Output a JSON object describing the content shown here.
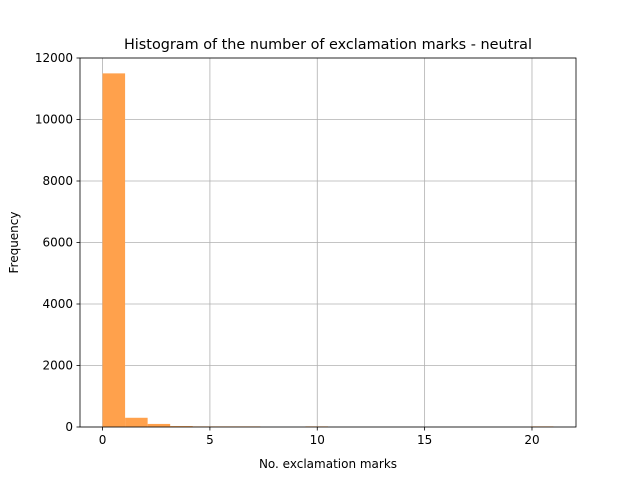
{
  "chart_data": {
    "type": "bar",
    "title": "Histogram of the number of exclamation marks - neutral",
    "xlabel": "No. exclamation marks",
    "ylabel": "Frequency",
    "xlim": [
      -1.05,
      22.05
    ],
    "ylim": [
      0,
      12000
    ],
    "xticks": [
      0,
      5,
      10,
      15,
      20
    ],
    "yticks": [
      0,
      2000,
      4000,
      6000,
      8000,
      10000,
      12000
    ],
    "grid": true,
    "bar_color": "#ffa14c",
    "bins": [
      {
        "x0": 0.0,
        "x1": 1.05,
        "value": 11500
      },
      {
        "x0": 1.05,
        "x1": 2.1,
        "value": 300
      },
      {
        "x0": 2.1,
        "x1": 3.15,
        "value": 100
      },
      {
        "x0": 3.15,
        "x1": 4.2,
        "value": 30
      },
      {
        "x0": 4.2,
        "x1": 5.25,
        "value": 5
      },
      {
        "x0": 5.25,
        "x1": 6.3,
        "value": 2
      },
      {
        "x0": 6.3,
        "x1": 7.35,
        "value": 1
      },
      {
        "x0": 7.35,
        "x1": 8.4,
        "value": 0
      },
      {
        "x0": 8.4,
        "x1": 9.45,
        "value": 0
      },
      {
        "x0": 9.45,
        "x1": 10.5,
        "value": 1
      },
      {
        "x0": 10.5,
        "x1": 11.55,
        "value": 0
      },
      {
        "x0": 11.55,
        "x1": 12.6,
        "value": 0
      },
      {
        "x0": 12.6,
        "x1": 13.65,
        "value": 0
      },
      {
        "x0": 13.65,
        "x1": 14.7,
        "value": 0
      },
      {
        "x0": 14.7,
        "x1": 15.75,
        "value": 0
      },
      {
        "x0": 15.75,
        "x1": 16.8,
        "value": 0
      },
      {
        "x0": 16.8,
        "x1": 17.85,
        "value": 0
      },
      {
        "x0": 17.85,
        "x1": 18.9,
        "value": 0
      },
      {
        "x0": 18.9,
        "x1": 19.95,
        "value": 0
      },
      {
        "x0": 19.95,
        "x1": 21.0,
        "value": 1
      }
    ]
  }
}
